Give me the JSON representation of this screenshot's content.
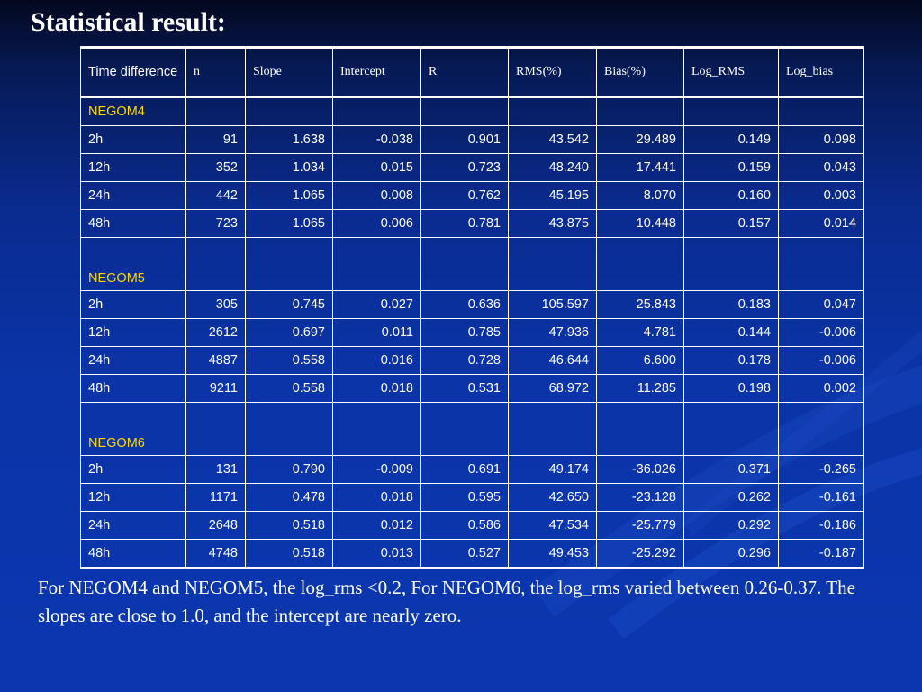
{
  "title": "Statistical result:",
  "table": {
    "headers": [
      "Time difference",
      "n",
      "Slope",
      "Intercept",
      "R",
      "RMS(%)",
      "Bias(%)",
      "Log_RMS",
      "Log_bias"
    ],
    "groups": [
      {
        "name": "NEGOM4",
        "rows": [
          [
            "2h",
            "91",
            "1.638",
            "-0.038",
            "0.901",
            "43.542",
            "29.489",
            "0.149",
            "0.098"
          ],
          [
            "12h",
            "352",
            "1.034",
            "0.015",
            "0.723",
            "48.240",
            "17.441",
            "0.159",
            "0.043"
          ],
          [
            "24h",
            "442",
            "1.065",
            "0.008",
            "0.762",
            "45.195",
            "8.070",
            "0.160",
            "0.003"
          ],
          [
            "48h",
            "723",
            "1.065",
            "0.006",
            "0.781",
            "43.875",
            "10.448",
            "0.157",
            "0.014"
          ]
        ]
      },
      {
        "name": "NEGOM5",
        "rows": [
          [
            "2h",
            "305",
            "0.745",
            "0.027",
            "0.636",
            "105.597",
            "25.843",
            "0.183",
            "0.047"
          ],
          [
            "12h",
            "2612",
            "0.697",
            "0.011",
            "0.785",
            "47.936",
            "4.781",
            "0.144",
            "-0.006"
          ],
          [
            "24h",
            "4887",
            "0.558",
            "0.016",
            "0.728",
            "46.644",
            "6.600",
            "0.178",
            "-0.006"
          ],
          [
            "48h",
            "9211",
            "0.558",
            "0.018",
            "0.531",
            "68.972",
            "11.285",
            "0.198",
            "0.002"
          ]
        ]
      },
      {
        "name": "NEGOM6",
        "rows": [
          [
            "2h",
            "131",
            "0.790",
            "-0.009",
            "0.691",
            "49.174",
            "-36.026",
            "0.371",
            "-0.265"
          ],
          [
            "12h",
            "1171",
            "0.478",
            "0.018",
            "0.595",
            "42.650",
            "-23.128",
            "0.262",
            "-0.161"
          ],
          [
            "24h",
            "2648",
            "0.518",
            "0.012",
            "0.586",
            "47.534",
            "-25.779",
            "0.292",
            "-0.186"
          ],
          [
            "48h",
            "4748",
            "0.518",
            "0.013",
            "0.527",
            "49.453",
            "-25.292",
            "0.296",
            "-0.187"
          ]
        ]
      }
    ]
  },
  "caption": "For NEGOM4 and NEGOM5, the log_rms <0.2, For NEGOM6, the log_rms varied between 0.26-0.37. The slopes are close to 1.0, and the intercept are nearly zero.",
  "colors": {
    "background": "#0b34a8",
    "group_label": "#ffd700",
    "text": "#ffffff"
  }
}
